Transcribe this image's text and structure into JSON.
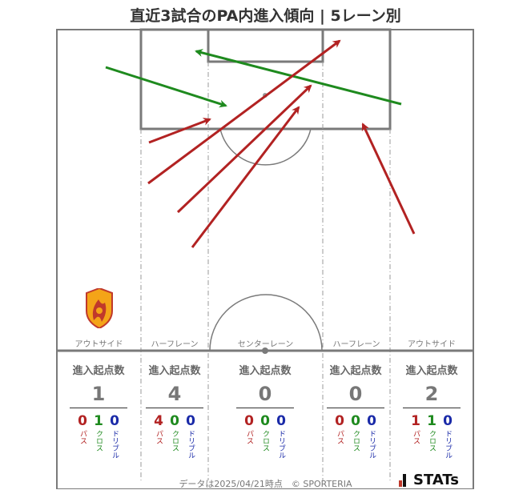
{
  "title": "直近3試合のPA内進入傾向 | 5レーン別",
  "lanes": [
    {
      "label": "アウトサイド",
      "total": "1",
      "pass": "0",
      "cross": "1",
      "dribble": "0"
    },
    {
      "label": "ハーフレーン",
      "total": "4",
      "pass": "4",
      "cross": "0",
      "dribble": "0"
    },
    {
      "label": "センターレーン",
      "total": "0",
      "pass": "0",
      "cross": "0",
      "dribble": "0"
    },
    {
      "label": "ハーフレーン",
      "total": "0",
      "pass": "0",
      "cross": "0",
      "dribble": "0"
    },
    {
      "label": "アウトサイド",
      "total": "2",
      "pass": "1",
      "cross": "1",
      "dribble": "0"
    }
  ],
  "stat_header": "進入起点数",
  "labels": {
    "pass": "パス",
    "cross": "クロス",
    "dribble": "ドリブル"
  },
  "colors": {
    "pass": "#b22222",
    "cross": "#1e8a1e",
    "dribble": "#1a2aa8",
    "pitch_line": "#7a7a7a"
  },
  "footer": "データは2025/04/21時点　© SPORTERIA",
  "brand": "STATs",
  "badge_icon": "team-crest-icon"
}
